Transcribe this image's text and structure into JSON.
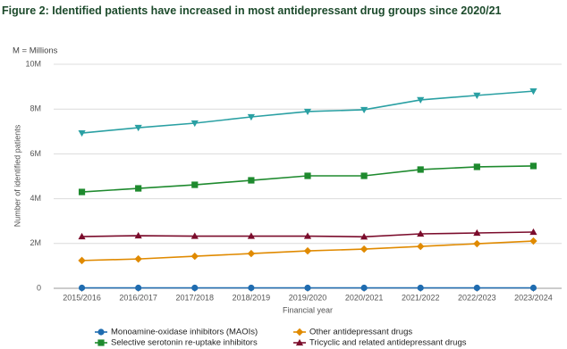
{
  "chart_data": {
    "type": "line",
    "title": "Figure 2: Identified patients have increased in most antidepressant drug groups since 2020/21",
    "subtitle": "M = Millions",
    "x_label": "Financial year",
    "y_label": "Number of identified patients",
    "categories": [
      "2015/2016",
      "2016/2017",
      "2017/2018",
      "2018/2019",
      "2019/2020",
      "2020/2021",
      "2021/2022",
      "2022/2023",
      "2023/2024"
    ],
    "ylim": [
      0,
      10
    ],
    "yticks": [
      0,
      {
        "value": 2,
        "label": "2M"
      },
      {
        "value": 4,
        "label": "4M"
      },
      {
        "value": 6,
        "label": "6M"
      },
      {
        "value": 8,
        "label": "8M"
      },
      {
        "value": 10,
        "label": "10M"
      }
    ],
    "grid": true,
    "legend": "bottom",
    "series": [
      {
        "name": "Monoamine-oxidase inhibitors (MAOIs)",
        "color": "#1f6cb0",
        "marker": "circle",
        "values": [
          0.02,
          0.02,
          0.02,
          0.02,
          0.02,
          0.02,
          0.02,
          0.02,
          0.02
        ]
      },
      {
        "name": "Other antidepressant drugs",
        "color": "#e08a00",
        "marker": "diamond",
        "values": [
          1.24,
          1.31,
          1.43,
          1.55,
          1.67,
          1.75,
          1.87,
          1.99,
          2.11
        ]
      },
      {
        "name": "Selective serotonin re-uptake inhibitors",
        "color": "#1e8a2e",
        "marker": "square",
        "values": [
          4.3,
          4.46,
          4.62,
          4.82,
          5.02,
          5.02,
          5.3,
          5.42,
          5.46
        ]
      },
      {
        "name": "Tricyclic and related antidepressant drugs",
        "color": "#7b0c2c",
        "marker": "triangle",
        "values": [
          2.31,
          2.35,
          2.33,
          2.33,
          2.33,
          2.3,
          2.43,
          2.47,
          2.51
        ]
      },
      {
        "color": "#2aa0a3",
        "marker": "triangle-down",
        "values": [
          6.93,
          7.17,
          7.37,
          7.65,
          7.89,
          7.97,
          8.41,
          8.61,
          8.8
        ]
      }
    ]
  }
}
